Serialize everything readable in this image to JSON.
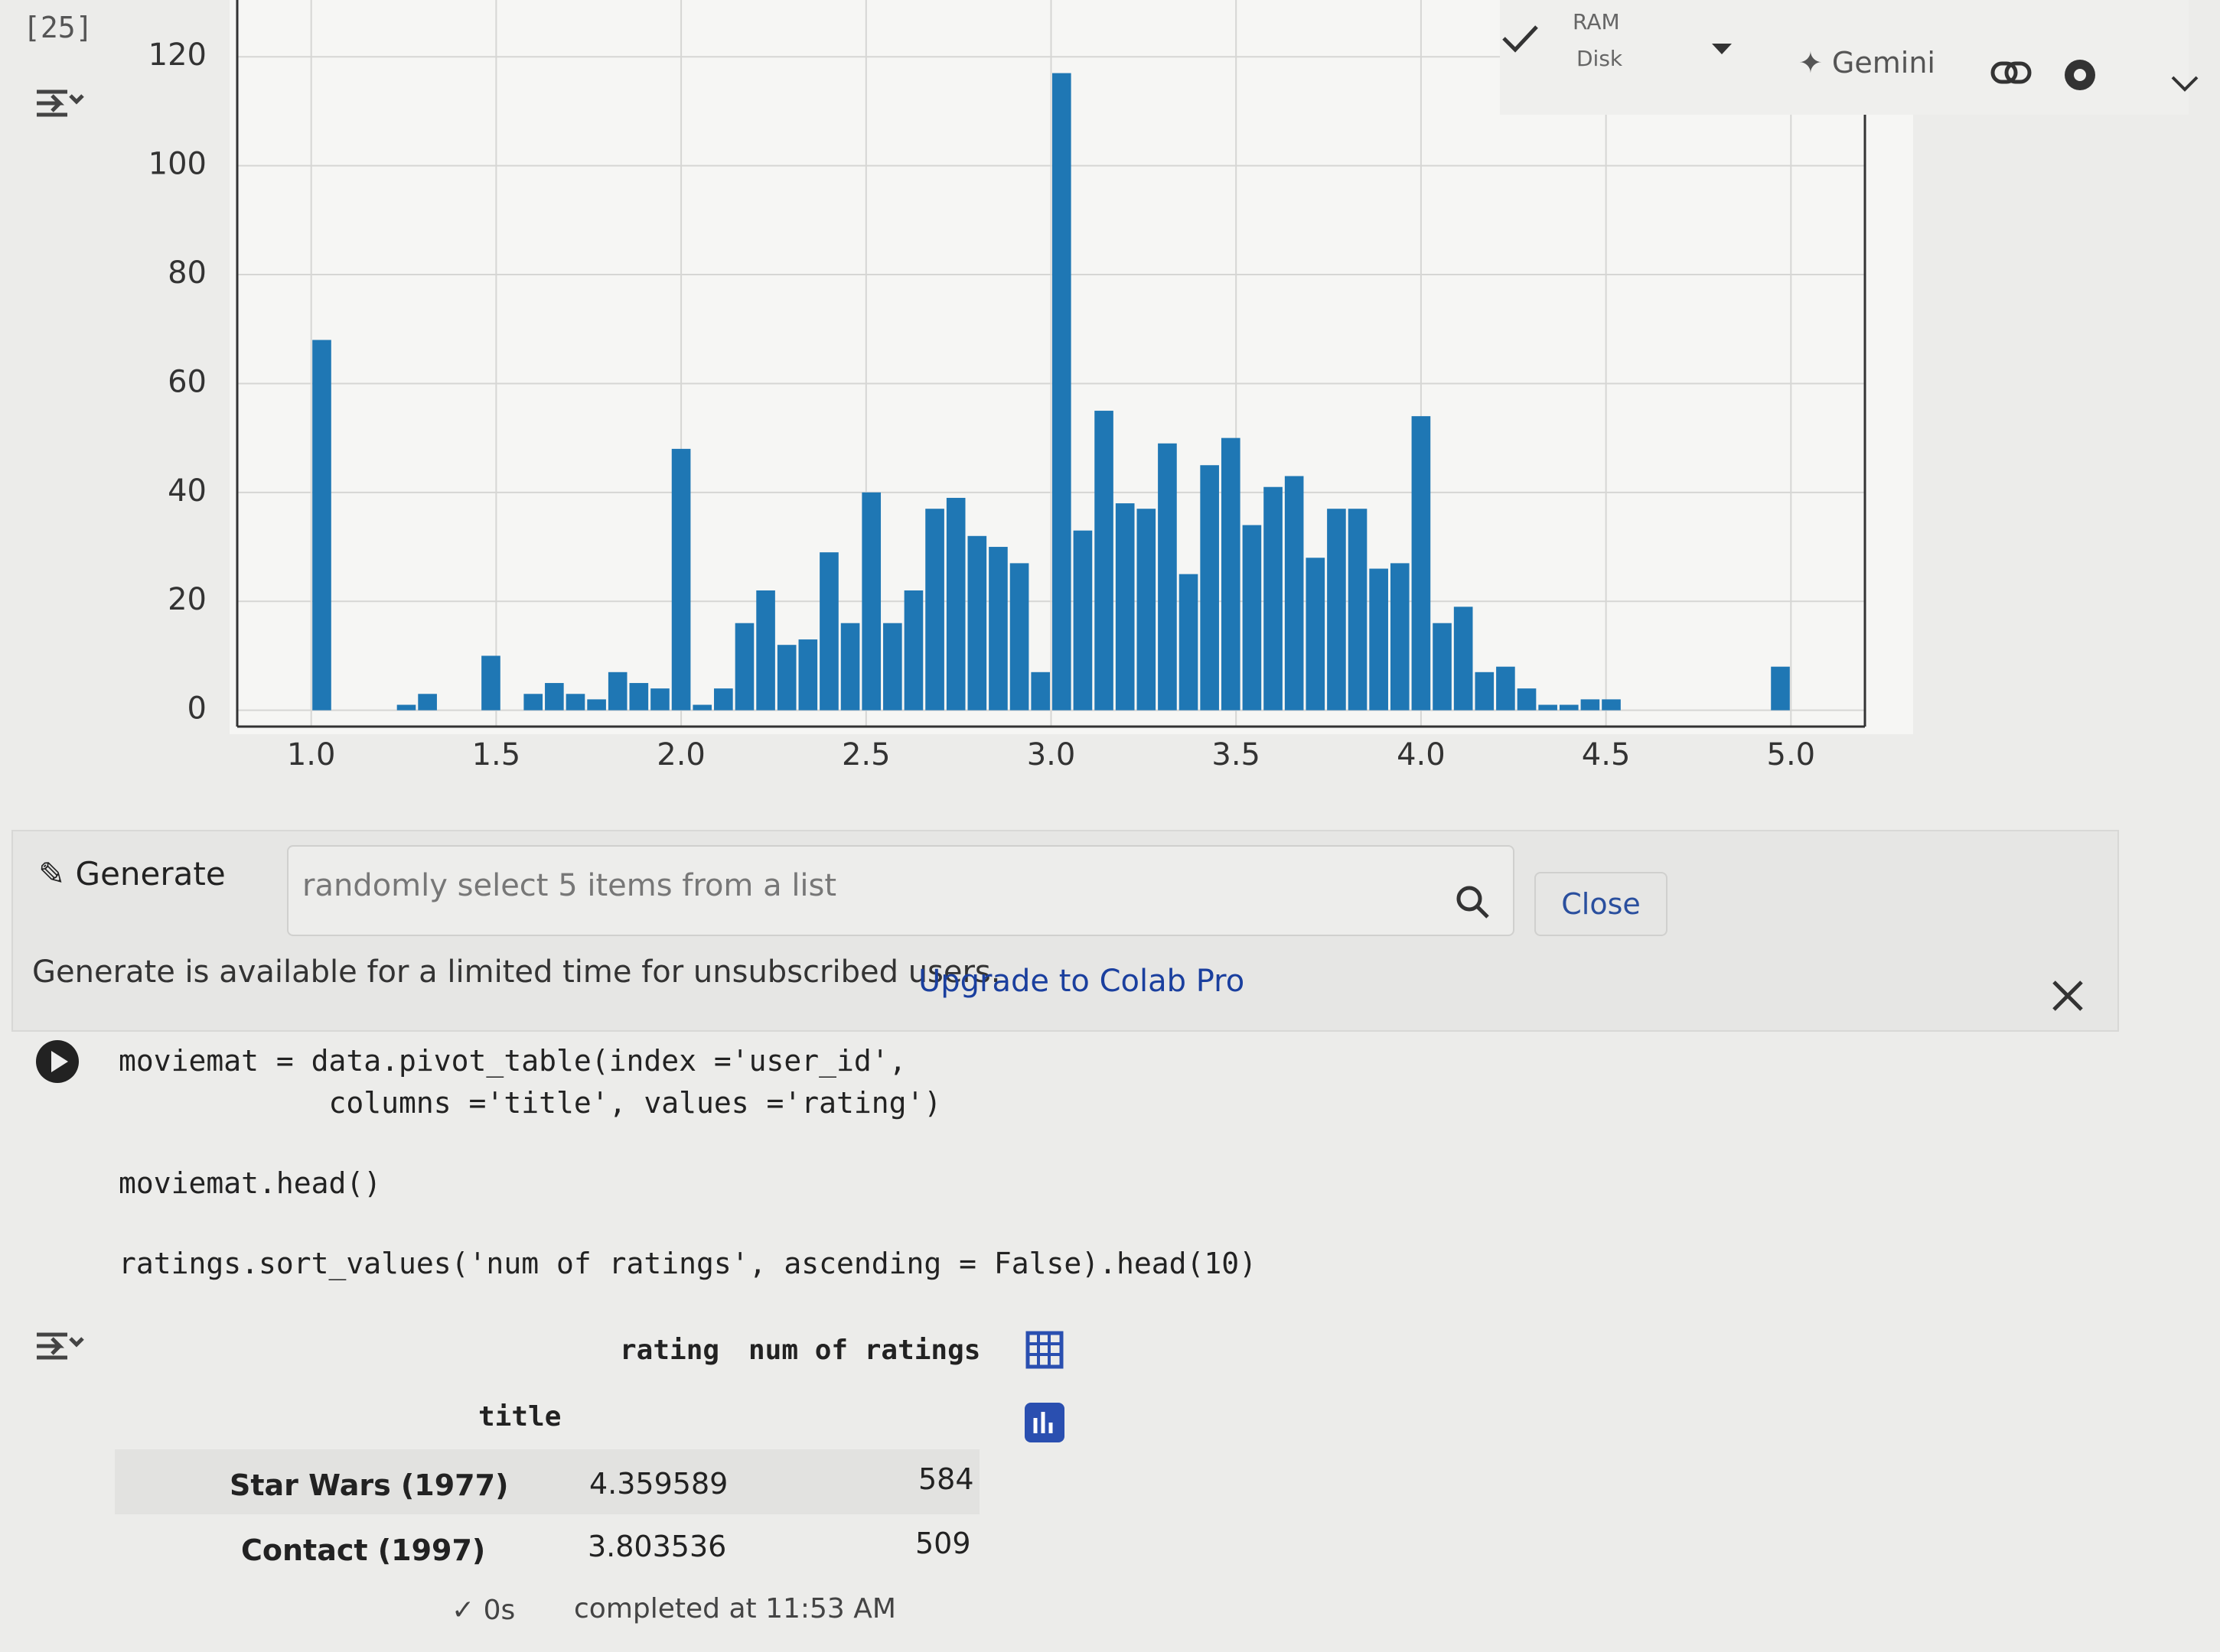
{
  "cell_number": "[25]",
  "toolbar": {
    "ram": "RAM",
    "disk": "Disk",
    "gemini": "Gemini"
  },
  "chart_data": {
    "type": "histogram",
    "color": "#1f77b4",
    "grid": true,
    "bins": [
      1,
      1.0571,
      1.1143,
      1.1714,
      1.2286,
      1.2857,
      1.3429,
      1.4,
      1.4571,
      1.5143,
      1.5714,
      1.6286,
      1.6857,
      1.7429,
      1.8,
      1.8571,
      1.9143,
      1.9714,
      2.0286,
      2.0857,
      2.1429,
      2.2,
      2.2571,
      2.3143,
      2.3714,
      2.4286,
      2.4857,
      2.5429,
      2.6,
      2.6571,
      2.7143,
      2.7714,
      2.8286,
      2.8857,
      2.9429,
      3.0,
      3.0571,
      3.1143,
      3.1714,
      3.2286,
      3.2857,
      3.3429,
      3.4,
      3.4571,
      3.5143,
      3.5714,
      3.6286,
      3.6857,
      3.7429,
      3.8,
      3.8571,
      3.9143,
      3.9714,
      4.0286,
      4.0857,
      4.1429,
      4.2,
      4.2571,
      4.3143,
      4.3714,
      4.4286,
      4.4857,
      4.5429,
      4.6,
      4.6571,
      4.7143,
      4.7714,
      4.8286,
      4.8857,
      4.9429,
      5.0
    ],
    "values": [
      68,
      0,
      0,
      0,
      1,
      3,
      0,
      0,
      10,
      0,
      3,
      5,
      3,
      2,
      7,
      5,
      4,
      48,
      1,
      4,
      16,
      22,
      12,
      13,
      29,
      16,
      40,
      16,
      22,
      37,
      39,
      32,
      30,
      27,
      7,
      117,
      33,
      55,
      38,
      37,
      49,
      25,
      45,
      50,
      34,
      41,
      43,
      28,
      37,
      37,
      26,
      27,
      54,
      16,
      19,
      7,
      8,
      4,
      1,
      1,
      2,
      2,
      0,
      0,
      0,
      0,
      0,
      0,
      0,
      8
    ],
    "xlim": [
      0.8,
      5.2
    ],
    "ylim": [
      -3,
      122
    ],
    "xticks": [
      {
        "value": 1,
        "label": "1.0"
      },
      {
        "value": 1.5,
        "label": "1.5"
      },
      {
        "value": 2,
        "label": "2.0"
      },
      {
        "value": 2.5,
        "label": "2.5"
      },
      {
        "value": 3,
        "label": "3.0"
      },
      {
        "value": 3.5,
        "label": "3.5"
      },
      {
        "value": 4,
        "label": "4.0"
      },
      {
        "value": 4.5,
        "label": "4.5"
      },
      {
        "value": 5,
        "label": "5.0"
      }
    ],
    "yticks": [
      0,
      20,
      40,
      60,
      80,
      100,
      120
    ]
  },
  "generate": {
    "button": "Generate",
    "placeholder": "randomly select 5 items from a list",
    "close": "Close"
  },
  "notice": {
    "text": "Generate is available for a limited time for unsubscribed users.",
    "link": "Upgrade to Colab Pro"
  },
  "code": {
    "lines": [
      "moviemat = data.pivot_table(index ='user_id',",
      "            columns ='title', values ='rating')",
      "moviemat.head()",
      "ratings.sort_values('num of ratings', ascending = False).head(10)"
    ]
  },
  "output": {
    "columns": [
      "rating",
      "num of ratings"
    ],
    "index_name": "title",
    "rows": [
      [
        "Star Wars (1977)",
        4.359589,
        584
      ],
      [
        "Contact (1997)",
        3.803536,
        509
      ]
    ]
  },
  "status": {
    "duration": "0s",
    "completed": "completed at 11:53 AM"
  }
}
